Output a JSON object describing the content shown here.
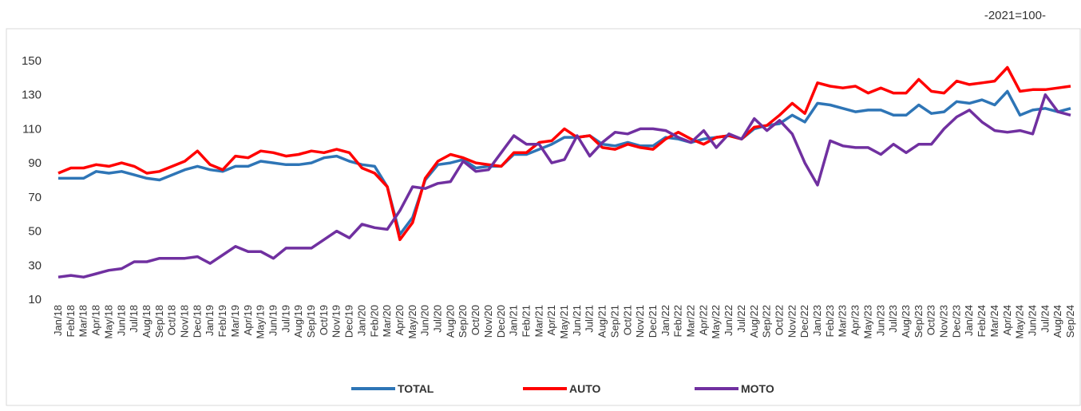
{
  "chart_data": {
    "type": "line",
    "annotation": "-2021=100-",
    "categories": [
      "Jan/18",
      "Feb/18",
      "Mar/18",
      "Apr/18",
      "May/18",
      "Jun/18",
      "Jul/18",
      "Aug/18",
      "Sep/18",
      "Oct/18",
      "Nov/18",
      "Dec/18",
      "Jan/19",
      "Feb/19",
      "Mar/19",
      "Apr/19",
      "May/19",
      "Jun/19",
      "Jul/19",
      "Aug/19",
      "Sep/19",
      "Oct/19",
      "Nov/19",
      "Dec/19",
      "Jan/20",
      "Feb/20",
      "Mar/20",
      "Apr/20",
      "May/20",
      "Jun/20",
      "Jul/20",
      "Aug/20",
      "Sep/20",
      "Oct/20",
      "Nov/20",
      "Dec/20",
      "Jan/21",
      "Feb/21",
      "Mar/21",
      "Apr/21",
      "May/21",
      "Jun/21",
      "Jul/21",
      "Aug/21",
      "Sep/21",
      "Oct/21",
      "Nov/21",
      "Dec/21",
      "Jan/22",
      "Feb/22",
      "Mar/22",
      "Apr/22",
      "May/22",
      "Jun/22",
      "Jul/22",
      "Aug/22",
      "Sep/22",
      "Oct/22",
      "Nov/22",
      "Dec/22",
      "Jan/23",
      "Feb/23",
      "Mar/23",
      "Apr/23",
      "May/23",
      "Jun/23",
      "Jul/23",
      "Aug/23",
      "Sep/23",
      "Oct/23",
      "Nov/23",
      "Dec/23",
      "Jan/24",
      "Feb/24",
      "Mar/24",
      "Apr/24",
      "May/24",
      "Jun/24",
      "Jul/24",
      "Aug/24",
      "Sep/24"
    ],
    "series": [
      {
        "name": "TOTAL",
        "color": "#2e75b6",
        "values": [
          81,
          81,
          81,
          85,
          84,
          85,
          83,
          81,
          80,
          83,
          86,
          88,
          86,
          85,
          88,
          88,
          91,
          90,
          89,
          89,
          90,
          93,
          94,
          91,
          89,
          88,
          76,
          48,
          58,
          80,
          89,
          90,
          92,
          87,
          88,
          88,
          95,
          95,
          98,
          101,
          105,
          105,
          106,
          101,
          100,
          102,
          100,
          100,
          105,
          104,
          102,
          104,
          105,
          106,
          104,
          110,
          112,
          113,
          118,
          114,
          125,
          124,
          122,
          120,
          121,
          121,
          118,
          118,
          124,
          119,
          120,
          126,
          125,
          127,
          124,
          132,
          118,
          121,
          122,
          120,
          122
        ]
      },
      {
        "name": "AUTO",
        "color": "#ff0000",
        "values": [
          84,
          87,
          87,
          89,
          88,
          90,
          88,
          84,
          85,
          88,
          91,
          97,
          89,
          86,
          94,
          93,
          97,
          96,
          94,
          95,
          97,
          96,
          98,
          96,
          87,
          84,
          76,
          45,
          55,
          81,
          91,
          95,
          93,
          90,
          89,
          88,
          96,
          96,
          102,
          103,
          110,
          105,
          106,
          99,
          98,
          101,
          99,
          98,
          104,
          108,
          104,
          101,
          105,
          106,
          104,
          111,
          112,
          118,
          125,
          119,
          137,
          135,
          134,
          135,
          131,
          134,
          131,
          131,
          139,
          132,
          131,
          138,
          136,
          137,
          138,
          146,
          132,
          133,
          133,
          134,
          135
        ]
      },
      {
        "name": "MOTO",
        "color": "#7030a0",
        "values": [
          23,
          24,
          23,
          25,
          27,
          28,
          32,
          32,
          34,
          34,
          34,
          35,
          31,
          36,
          41,
          38,
          38,
          34,
          40,
          40,
          40,
          45,
          50,
          46,
          54,
          52,
          51,
          62,
          76,
          75,
          78,
          79,
          91,
          85,
          86,
          96,
          106,
          101,
          101,
          90,
          92,
          106,
          94,
          102,
          108,
          107,
          110,
          110,
          109,
          105,
          102,
          109,
          99,
          107,
          104,
          116,
          109,
          115,
          107,
          90,
          77,
          103,
          100,
          99,
          99,
          95,
          101,
          96,
          101,
          101,
          110,
          117,
          121,
          114,
          109,
          108,
          109,
          107,
          130,
          120,
          118
        ]
      }
    ],
    "ylim": [
      10,
      150
    ],
    "yticks": [
      10,
      30,
      50,
      70,
      90,
      110,
      130,
      150
    ],
    "grid": false
  }
}
